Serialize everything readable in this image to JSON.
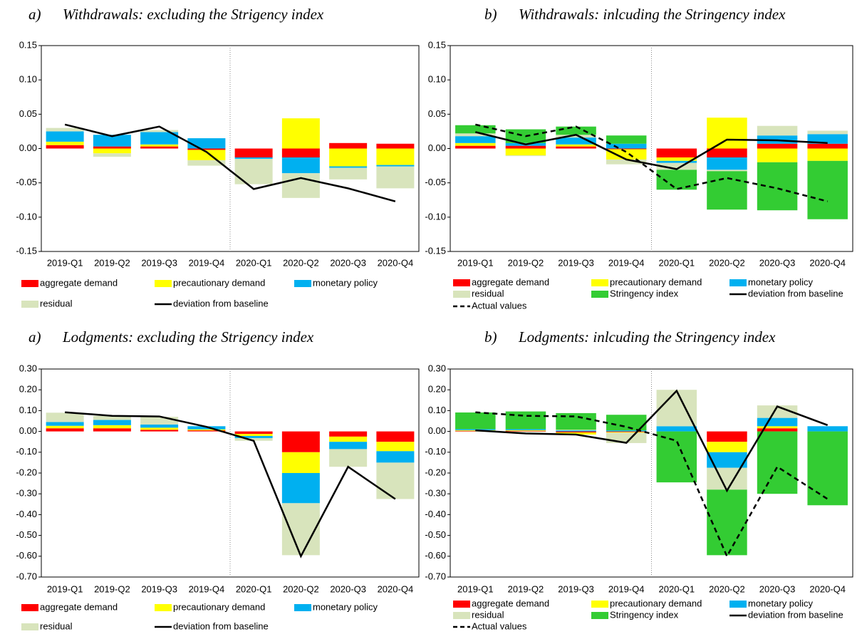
{
  "chart_data": [
    {
      "type": "bar",
      "stacked": true,
      "panel_label": "a)",
      "title": "Withdrawals: excluding the Strigency index",
      "categories": [
        "2019-Q1",
        "2019-Q2",
        "2019-Q3",
        "2019-Q4",
        "2020-Q1",
        "2020-Q2",
        "2020-Q3",
        "2020-Q4"
      ],
      "ylim": [
        -0.15,
        0.15
      ],
      "yticks": [
        -0.15,
        {
          "value": -0.1,
          "label": "-0.10"
        },
        -0.05,
        {
          "value": 0,
          "label": "0.00"
        },
        0.05,
        {
          "value": 0.1,
          "label": "0.10"
        },
        0.15
      ],
      "series": [
        {
          "name": "aggregate demand",
          "color": "#ff0000",
          "values": [
            0.005,
            0.003,
            0.003,
            -0.002,
            -0.013,
            -0.013,
            0.008,
            0.007
          ]
        },
        {
          "name": "precautionary demand",
          "color": "#ffff00",
          "values": [
            0.005,
            -0.007,
            0.003,
            -0.015,
            0,
            0.044,
            -0.026,
            -0.024
          ]
        },
        {
          "name": "monetary policy",
          "color": "#00b0f0",
          "values": [
            0.015,
            0.017,
            0.018,
            0.015,
            -0.002,
            -0.023,
            -0.002,
            -0.002
          ]
        },
        {
          "name": "residual",
          "color": "#d8e4bc",
          "values": [
            0.005,
            -0.005,
            0.003,
            -0.008,
            -0.037,
            -0.036,
            -0.017,
            -0.032
          ]
        },
        {
          "name": "deviation from baseline",
          "type": "line",
          "color": "#000000",
          "values": [
            0.035,
            0.018,
            0.032,
            -0.005,
            -0.059,
            -0.043,
            -0.058,
            -0.077
          ]
        }
      ]
    },
    {
      "type": "bar",
      "stacked": true,
      "panel_label": "b)",
      "title": "Withdrawals: inlcuding the Stringency index",
      "categories": [
        "2019-Q1",
        "2019-Q2",
        "2019-Q3",
        "2019-Q4",
        "2020-Q1",
        "2020-Q2",
        "2020-Q3",
        "2020-Q4"
      ],
      "ylim": [
        -0.15,
        0.15
      ],
      "yticks": [
        -0.15,
        {
          "value": -0.1,
          "label": "-0.10"
        },
        -0.05,
        {
          "value": 0,
          "label": "0.00"
        },
        0.05,
        {
          "value": 0.1,
          "label": "0.10"
        },
        0.15
      ],
      "series": [
        {
          "name": "aggregate demand",
          "color": "#ff0000",
          "values": [
            0.004,
            0.004,
            0.003,
            -0.001,
            -0.013,
            -0.013,
            0.007,
            0.007
          ]
        },
        {
          "name": "precautionary demand",
          "color": "#ffff00",
          "values": [
            0.004,
            -0.01,
            0.003,
            -0.015,
            -0.005,
            0.045,
            -0.02,
            -0.018
          ]
        },
        {
          "name": "monetary policy",
          "color": "#00b0f0",
          "values": [
            0.01,
            0.004,
            0.01,
            0.007,
            -0.003,
            -0.018,
            0.012,
            0.014
          ]
        },
        {
          "name": "residual",
          "color": "#d8e4bc",
          "values": [
            0.004,
            -0.001,
            0.004,
            -0.007,
            -0.01,
            -0.002,
            0.014,
            0.005
          ]
        },
        {
          "name": "Stringency index",
          "color": "#33cc33",
          "values": [
            0.012,
            0.02,
            0.012,
            0.012,
            -0.029,
            -0.056,
            -0.07,
            -0.085
          ]
        },
        {
          "name": "deviation from baseline",
          "type": "line",
          "color": "#000000",
          "values": [
            0.024,
            0.006,
            0.02,
            -0.016,
            -0.03,
            0.013,
            0.012,
            0.008
          ]
        },
        {
          "name": "Actual values",
          "type": "line",
          "dashed": true,
          "color": "#000000",
          "values": [
            0.035,
            0.018,
            0.032,
            -0.005,
            -0.059,
            -0.043,
            -0.058,
            -0.077
          ]
        }
      ]
    },
    {
      "type": "bar",
      "stacked": true,
      "panel_label": "a)",
      "title": "Lodgments: excluding the Strigency index",
      "categories": [
        "2019-Q1",
        "2019-Q2",
        "2019-Q3",
        "2019-Q4",
        "2020-Q1",
        "2020-Q2",
        "2020-Q3",
        "2020-Q4"
      ],
      "ylim": [
        -0.7,
        0.3
      ],
      "yticks": [
        {
          "value": -0.7,
          "label": "-0.70"
        },
        {
          "value": -0.6,
          "label": "-0.60"
        },
        {
          "value": -0.5,
          "label": "-0.50"
        },
        {
          "value": -0.4,
          "label": "-0.40"
        },
        {
          "value": -0.3,
          "label": "-0.30"
        },
        {
          "value": -0.2,
          "label": "-0.20"
        },
        {
          "value": -0.1,
          "label": "-0.10"
        },
        {
          "value": 0,
          "label": "0.00"
        },
        {
          "value": 0.1,
          "label": "0.10"
        },
        {
          "value": 0.2,
          "label": "0.20"
        },
        {
          "value": 0.3,
          "label": "0.30"
        }
      ],
      "series": [
        {
          "name": "aggregate demand",
          "color": "#ff0000",
          "values": [
            0.015,
            0.015,
            0.008,
            0.005,
            -0.012,
            -0.1,
            -0.025,
            -0.05
          ]
        },
        {
          "name": "precautionary demand",
          "color": "#ffff00",
          "values": [
            0.012,
            0.015,
            0.01,
            0.005,
            -0.01,
            -0.1,
            -0.025,
            -0.045
          ]
        },
        {
          "name": "monetary policy",
          "color": "#00b0f0",
          "values": [
            0.018,
            0.025,
            0.015,
            0.015,
            -0.01,
            -0.145,
            -0.035,
            -0.055
          ]
        },
        {
          "name": "residual",
          "color": "#d8e4bc",
          "values": [
            0.045,
            0.02,
            0.037,
            0,
            -0.013,
            -0.25,
            -0.085,
            -0.175
          ]
        },
        {
          "name": "deviation from baseline",
          "type": "line",
          "color": "#000000",
          "values": [
            0.092,
            0.075,
            0.072,
            0.022,
            -0.045,
            -0.6,
            -0.17,
            -0.325
          ]
        }
      ]
    },
    {
      "type": "bar",
      "stacked": true,
      "panel_label": "b)",
      "title": "Lodgments: inlcuding the Stringency index",
      "categories": [
        "2019-Q1",
        "2019-Q2",
        "2019-Q3",
        "2019-Q4",
        "2020-Q1",
        "2020-Q2",
        "2020-Q3",
        "2020-Q4"
      ],
      "ylim": [
        -0.7,
        0.3
      ],
      "yticks": [
        {
          "value": -0.7,
          "label": "-0.70"
        },
        {
          "value": -0.6,
          "label": "-0.60"
        },
        {
          "value": -0.5,
          "label": "-0.50"
        },
        {
          "value": -0.4,
          "label": "-0.40"
        },
        {
          "value": -0.3,
          "label": "-0.30"
        },
        {
          "value": -0.2,
          "label": "-0.20"
        },
        {
          "value": -0.1,
          "label": "-0.10"
        },
        {
          "value": 0,
          "label": "0.00"
        },
        {
          "value": 0.1,
          "label": "0.10"
        },
        {
          "value": 0.2,
          "label": "0.20"
        },
        {
          "value": 0.3,
          "label": "0.30"
        }
      ],
      "series": [
        {
          "name": "aggregate demand",
          "color": "#ff0000",
          "values": [
            0.003,
            0.003,
            -0.005,
            -0.003,
            0,
            -0.05,
            0.015,
            0
          ]
        },
        {
          "name": "precautionary demand",
          "color": "#ffff00",
          "values": [
            0.003,
            0.003,
            -0.01,
            -0.003,
            0,
            -0.05,
            0.01,
            0
          ]
        },
        {
          "name": "monetary policy",
          "color": "#00b0f0",
          "values": [
            0.005,
            0.005,
            0.005,
            0.005,
            0.025,
            -0.075,
            0.04,
            0.025
          ]
        },
        {
          "name": "residual",
          "color": "#d8e4bc",
          "values": [
            -0.002,
            -0.003,
            0.003,
            -0.05,
            0.175,
            -0.105,
            0.06,
            0
          ]
        },
        {
          "name": "Stringency index",
          "color": "#33cc33",
          "values": [
            0.08,
            0.085,
            0.08,
            0.075,
            -0.245,
            -0.315,
            -0.3,
            -0.355
          ]
        },
        {
          "name": "deviation from baseline",
          "type": "line",
          "color": "#000000",
          "values": [
            0.005,
            -0.01,
            -0.015,
            -0.055,
            0.195,
            -0.285,
            0.12,
            0.03
          ]
        },
        {
          "name": "Actual values",
          "type": "line",
          "dashed": true,
          "color": "#000000",
          "values": [
            0.092,
            0.075,
            0.072,
            0.022,
            -0.045,
            -0.6,
            -0.17,
            -0.325
          ]
        }
      ]
    }
  ]
}
